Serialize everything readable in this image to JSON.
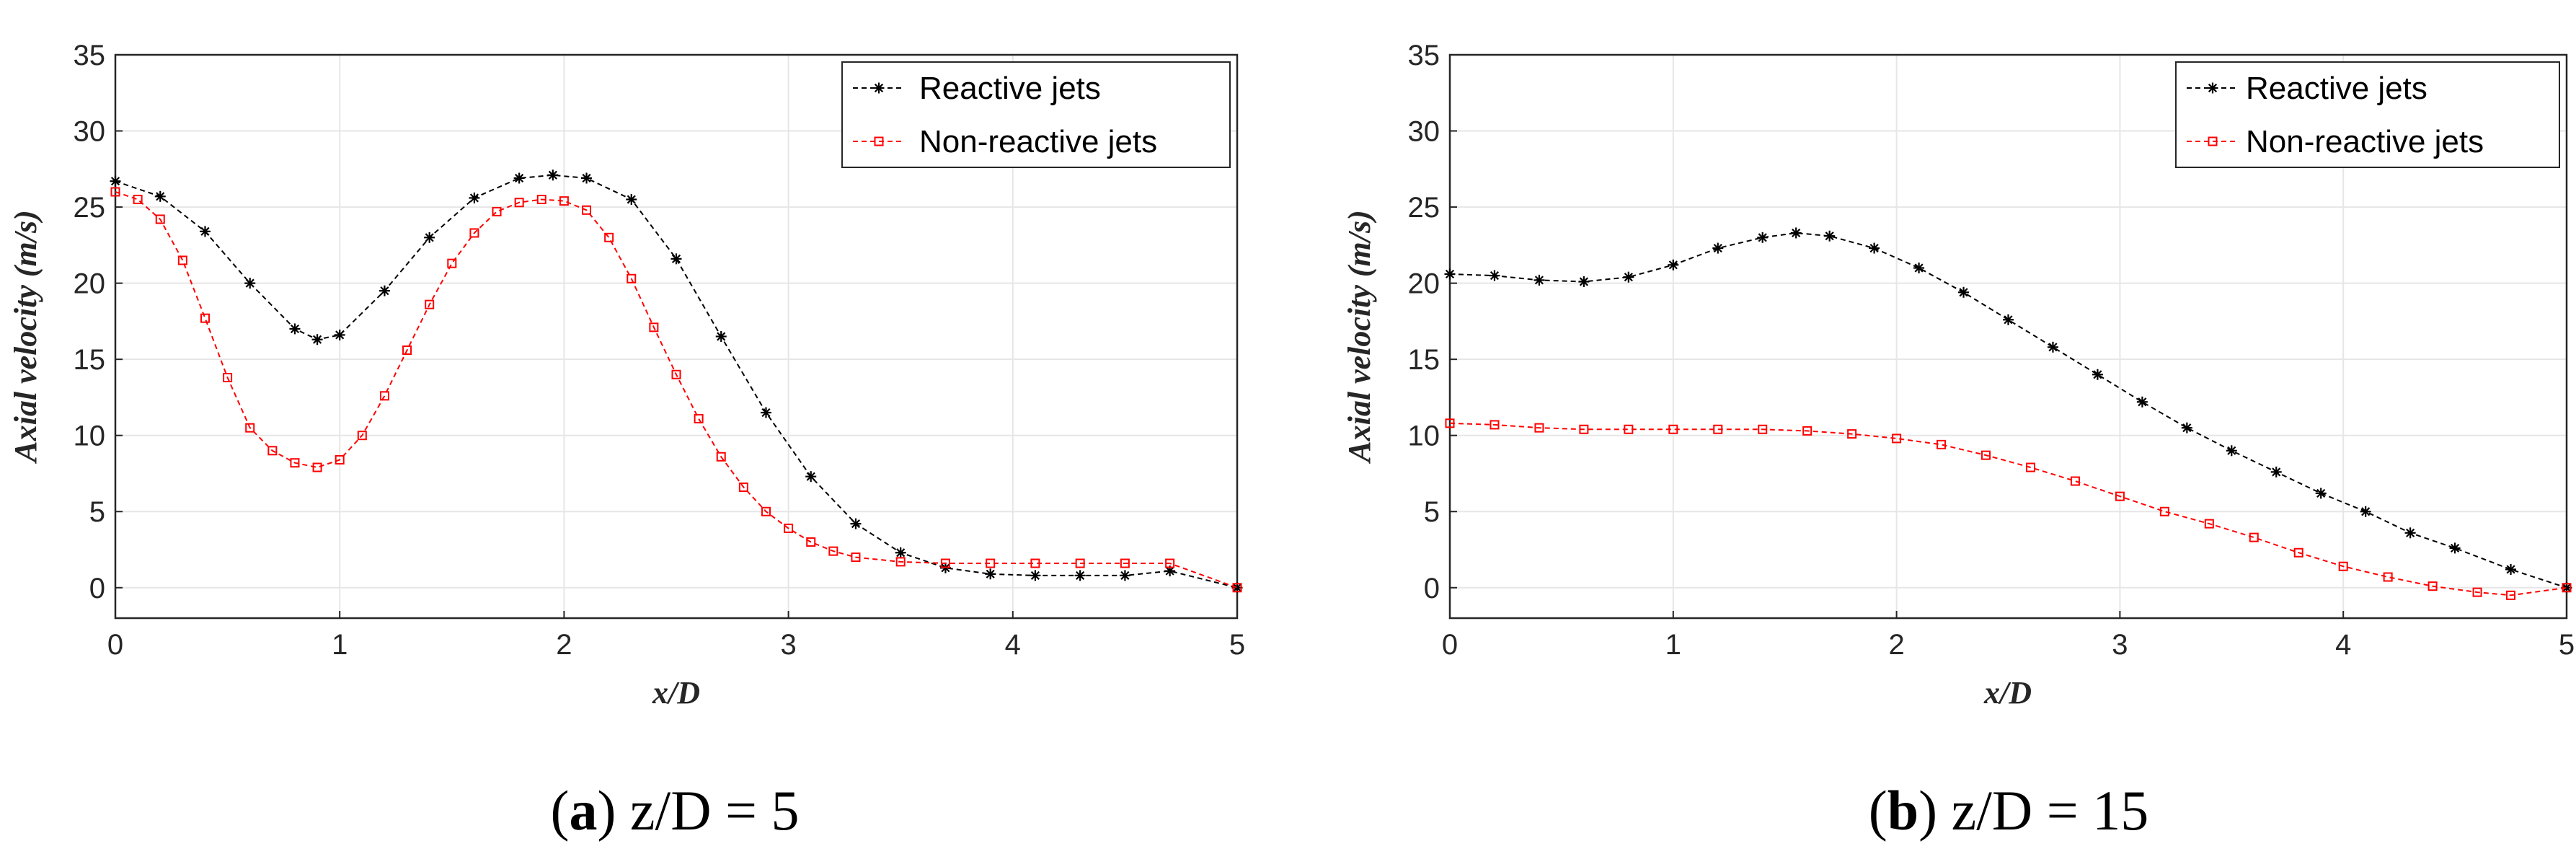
{
  "colors": {
    "reactive": "#000000",
    "non_reactive": "#ff0000",
    "grid": "#e6e6e6",
    "axis": "#262626"
  },
  "chart_data": [
    {
      "type": "line",
      "panel": "a",
      "caption_letter": "a",
      "caption_text": "z/D = 5",
      "title": "",
      "xlabel": "x/D",
      "ylabel": "Axial velocity (m/s)",
      "xlim": [
        0,
        5
      ],
      "ylim": [
        -2,
        35
      ],
      "xticks": [
        0,
        1,
        2,
        3,
        4,
        5
      ],
      "yticks": [
        0,
        5,
        10,
        15,
        20,
        25,
        30,
        35
      ],
      "grid": true,
      "legend_position": "top-right",
      "series": [
        {
          "name": "Reactive jets",
          "marker": "asterisk",
          "x": [
            0,
            0.2,
            0.4,
            0.6,
            0.8,
            0.9,
            1.0,
            1.2,
            1.4,
            1.6,
            1.8,
            1.95,
            2.1,
            2.3,
            2.5,
            2.7,
            2.9,
            3.1,
            3.3,
            3.5,
            3.7,
            3.9,
            4.1,
            4.3,
            4.5,
            4.7,
            5.0
          ],
          "y": [
            26.7,
            25.7,
            23.4,
            20.0,
            17.0,
            16.3,
            16.6,
            19.5,
            23.0,
            25.6,
            26.9,
            27.1,
            26.9,
            25.5,
            21.6,
            16.5,
            11.5,
            7.3,
            4.2,
            2.3,
            1.3,
            0.9,
            0.8,
            0.8,
            0.8,
            1.1,
            0.0
          ]
        },
        {
          "name": "Non-reactive jets",
          "marker": "square",
          "x": [
            0,
            0.1,
            0.2,
            0.3,
            0.4,
            0.5,
            0.6,
            0.7,
            0.8,
            0.9,
            1.0,
            1.1,
            1.2,
            1.3,
            1.4,
            1.5,
            1.6,
            1.7,
            1.8,
            1.9,
            2.0,
            2.1,
            2.2,
            2.3,
            2.4,
            2.5,
            2.6,
            2.7,
            2.8,
            2.9,
            3.0,
            3.1,
            3.2,
            3.3,
            3.5,
            3.7,
            3.9,
            4.1,
            4.3,
            4.5,
            4.7,
            5.0
          ],
          "y": [
            26.0,
            25.5,
            24.2,
            21.5,
            17.7,
            13.8,
            10.5,
            9.0,
            8.2,
            7.9,
            8.4,
            10.0,
            12.6,
            15.6,
            18.6,
            21.3,
            23.3,
            24.7,
            25.3,
            25.5,
            25.4,
            24.8,
            23.0,
            20.3,
            17.1,
            14.0,
            11.1,
            8.6,
            6.6,
            5.0,
            3.9,
            3.0,
            2.4,
            2.0,
            1.7,
            1.6,
            1.6,
            1.6,
            1.6,
            1.6,
            1.6,
            0.0
          ]
        }
      ]
    },
    {
      "type": "line",
      "panel": "b",
      "caption_letter": "b",
      "caption_text": "z/D = 15",
      "title": "",
      "xlabel": "x/D",
      "ylabel": "Axial velocity (m/s)",
      "xlim": [
        0,
        5
      ],
      "ylim": [
        -2,
        35
      ],
      "xticks": [
        0,
        1,
        2,
        3,
        4,
        5
      ],
      "yticks": [
        0,
        5,
        10,
        15,
        20,
        25,
        30,
        35
      ],
      "grid": true,
      "legend_position": "top-right",
      "series": [
        {
          "name": "Reactive jets",
          "marker": "asterisk",
          "x": [
            0,
            0.2,
            0.4,
            0.6,
            0.8,
            1.0,
            1.2,
            1.4,
            1.55,
            1.7,
            1.9,
            2.1,
            2.3,
            2.5,
            2.7,
            2.9,
            3.1,
            3.3,
            3.5,
            3.7,
            3.9,
            4.1,
            4.3,
            4.5,
            4.75,
            5.0
          ],
          "y": [
            20.6,
            20.5,
            20.2,
            20.1,
            20.4,
            21.2,
            22.3,
            23.0,
            23.3,
            23.1,
            22.3,
            21.0,
            19.4,
            17.6,
            15.8,
            14.0,
            12.2,
            10.5,
            9.0,
            7.6,
            6.2,
            5.0,
            3.6,
            2.6,
            1.2,
            0.0
          ]
        },
        {
          "name": "Non-reactive jets",
          "marker": "square",
          "x": [
            0,
            0.2,
            0.4,
            0.6,
            0.8,
            1.0,
            1.2,
            1.4,
            1.6,
            1.8,
            2.0,
            2.2,
            2.4,
            2.6,
            2.8,
            3.0,
            3.2,
            3.4,
            3.6,
            3.8,
            4.0,
            4.2,
            4.4,
            4.6,
            4.75,
            5.0
          ],
          "y": [
            10.8,
            10.7,
            10.5,
            10.4,
            10.4,
            10.4,
            10.4,
            10.4,
            10.3,
            10.1,
            9.8,
            9.4,
            8.7,
            7.9,
            7.0,
            6.0,
            5.0,
            4.2,
            3.3,
            2.3,
            1.4,
            0.7,
            0.1,
            -0.3,
            -0.5,
            0.0
          ]
        }
      ]
    }
  ]
}
